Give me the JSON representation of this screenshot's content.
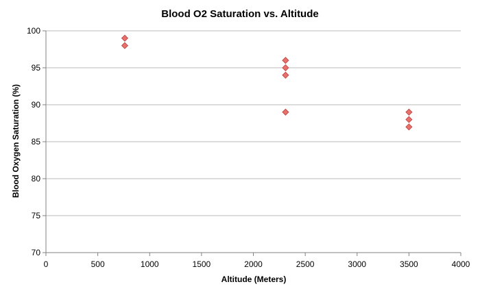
{
  "chart_data": {
    "type": "scatter",
    "title": "Blood O2 Saturation vs. Altitude",
    "xlabel": "Altitude (Meters)",
    "ylabel": "Blood Oxygen Saturation (%)",
    "xlim": [
      0,
      4000
    ],
    "ylim": [
      70,
      100
    ],
    "x_ticks": [
      "0",
      "500",
      "1000",
      "1500",
      "2000",
      "2500",
      "3000",
      "3500",
      "4000"
    ],
    "y_ticks": [
      "70",
      "75",
      "80",
      "85",
      "90",
      "95",
      "100"
    ],
    "grid": "horizontal",
    "legend": "none",
    "marker": "diamond",
    "marker_color": "#e8706c",
    "marker_edge_color": "#b8403c",
    "points": [
      {
        "x": 760,
        "y": 99
      },
      {
        "x": 760,
        "y": 98
      },
      {
        "x": 2310,
        "y": 96
      },
      {
        "x": 2310,
        "y": 95
      },
      {
        "x": 2310,
        "y": 94
      },
      {
        "x": 2310,
        "y": 89
      },
      {
        "x": 3500,
        "y": 89
      },
      {
        "x": 3500,
        "y": 88
      },
      {
        "x": 3500,
        "y": 87
      }
    ]
  }
}
